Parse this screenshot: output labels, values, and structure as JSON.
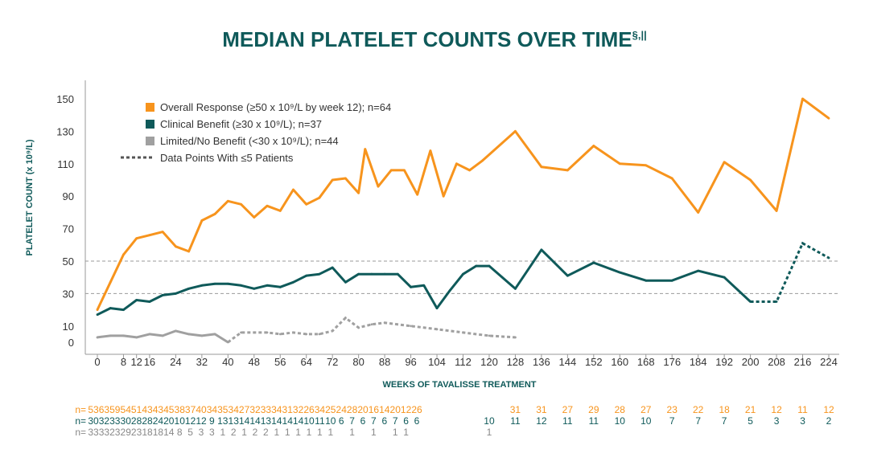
{
  "chart_data": {
    "type": "line",
    "title": "MEDIAN PLATELET COUNTS OVER TIME",
    "title_superscript": "§,||",
    "xlabel": "WEEKS OF TAVALISSE TREATMENT",
    "ylabel": "PLATELET COUNT (x 10⁹/L)",
    "ylim": [
      0,
      150
    ],
    "xlim": [
      0,
      224
    ],
    "x_ticks": [
      0,
      8,
      12,
      16,
      24,
      32,
      40,
      48,
      56,
      64,
      72,
      80,
      88,
      96,
      104,
      112,
      120,
      128,
      136,
      144,
      152,
      160,
      168,
      176,
      184,
      192,
      200,
      208,
      216,
      224
    ],
    "y_ticks": [
      0,
      10,
      30,
      50,
      70,
      90,
      110,
      130,
      150
    ],
    "reference_lines": [
      30,
      50
    ],
    "grid": false,
    "legend_placement": "top-left",
    "colors": {
      "overall": "#f7941d",
      "clinical": "#0f5a5a",
      "limited": "#a0a0a0",
      "dotted": "#555555"
    },
    "series": [
      {
        "name": "Overall Response (≥50 x 10⁹/L by week 12); n=64",
        "color": "#f7941d",
        "x": [
          0,
          4,
          8,
          12,
          16,
          20,
          24,
          28,
          32,
          36,
          40,
          44,
          48,
          52,
          56,
          60,
          64,
          68,
          72,
          76,
          80,
          82,
          86,
          90,
          94,
          98,
          102,
          106,
          110,
          114,
          118,
          128,
          136,
          144,
          152,
          160,
          168,
          176,
          184,
          192,
          200,
          208,
          216,
          224
        ],
        "y": [
          20,
          37,
          54,
          64,
          66,
          68,
          59,
          56,
          75,
          79,
          87,
          85,
          77,
          84,
          81,
          94,
          85,
          89,
          100,
          101,
          92,
          119,
          96,
          106,
          106,
          91,
          118,
          90,
          110,
          106,
          112,
          130,
          108,
          106,
          121,
          110,
          109,
          101,
          80,
          111,
          100,
          81,
          150,
          138
        ],
        "dotted_from_x": null
      },
      {
        "name": "Clinical Benefit (≥30 x 10⁹/L); n=37",
        "color": "#0f5a5a",
        "x": [
          0,
          4,
          8,
          12,
          16,
          20,
          24,
          28,
          32,
          36,
          40,
          44,
          48,
          52,
          56,
          60,
          64,
          68,
          72,
          76,
          80,
          84,
          88,
          92,
          96,
          100,
          104,
          108,
          112,
          116,
          120,
          128,
          136,
          144,
          152,
          160,
          168,
          176,
          184,
          192,
          200,
          208,
          216,
          224
        ],
        "y": [
          17,
          21,
          20,
          26,
          25,
          29,
          30,
          33,
          35,
          36,
          36,
          35,
          33,
          35,
          34,
          37,
          41,
          42,
          46,
          37,
          42,
          42,
          42,
          42,
          34,
          35,
          21,
          32,
          42,
          47,
          47,
          33,
          57,
          41,
          49,
          43,
          38,
          38,
          44,
          40,
          25,
          25,
          61,
          52
        ],
        "dotted_from_x": 200
      },
      {
        "name": "Limited/No Benefit (<30 x 10⁹/L); n=44",
        "color": "#a0a0a0",
        "x": [
          0,
          4,
          8,
          12,
          16,
          20,
          24,
          28,
          32,
          36,
          40,
          44,
          48,
          52,
          56,
          60,
          64,
          68,
          72,
          76,
          80,
          84,
          88,
          96,
          104,
          112,
          120,
          128
        ],
        "y": [
          3,
          4,
          4,
          3,
          5,
          4,
          7,
          5,
          4,
          5,
          0,
          6,
          6,
          6,
          5,
          6,
          5,
          5,
          7,
          15,
          9,
          11,
          12,
          10,
          8,
          6,
          4,
          3
        ],
        "dotted_from_x": 40
      }
    ],
    "legend": [
      {
        "label": "Overall Response (≥50 x 10⁹/L by week 12); n=64",
        "marker": "square",
        "color": "#f7941d"
      },
      {
        "label": "Clinical Benefit (≥30 x 10⁹/L); n=37",
        "marker": "square",
        "color": "#0f5a5a"
      },
      {
        "label": "Limited/No Benefit (<30 x 10⁹/L); n=44",
        "marker": "square",
        "color": "#a0a0a0"
      },
      {
        "label": "Data Points With ≤5 Patients",
        "marker": "dashed-line",
        "color": "#555555"
      }
    ],
    "n_table": {
      "row_label": "n=",
      "rows": [
        {
          "color": "#f7941d",
          "cells": [
            {
              "x": 4,
              "v": "53"
            },
            {
              "x": 8,
              "v": "63"
            },
            {
              "x": 12,
              "v": "59"
            },
            {
              "x": 16,
              "v": "54"
            },
            {
              "x": 20,
              "v": "51"
            },
            {
              "x": 24,
              "v": "43"
            },
            {
              "x": 28,
              "v": "43"
            },
            {
              "x": 32,
              "v": "45"
            },
            {
              "x": 36,
              "v": "38"
            },
            {
              "x": 40,
              "v": "37"
            },
            {
              "x": 44,
              "v": "40"
            },
            {
              "x": 48,
              "v": "34"
            },
            {
              "x": 52,
              "v": "35"
            },
            {
              "x": 56,
              "v": "34"
            },
            {
              "x": 60,
              "v": "27"
            },
            {
              "x": 64,
              "v": "32"
            },
            {
              "x": 68,
              "v": "33"
            },
            {
              "x": 72,
              "v": "34"
            },
            {
              "x": 76,
              "v": "31"
            },
            {
              "x": 80,
              "v": "32"
            },
            {
              "x": 84,
              "v": "26"
            },
            {
              "x": 88,
              "v": "34"
            },
            {
              "x": 92,
              "v": "25"
            },
            {
              "x": 96,
              "v": "24"
            },
            {
              "x": 100,
              "v": "28"
            },
            {
              "x": 104,
              "v": "20"
            },
            {
              "x": 108,
              "v": "16"
            },
            {
              "x": 112,
              "v": "14"
            },
            {
              "x": 116,
              "v": "20"
            },
            {
              "x": 120,
              "v": "12"
            },
            {
              "x": 124,
              "v": "26"
            },
            {
              "x": 136,
              "v": "31"
            },
            {
              "x": 144,
              "v": "31"
            },
            {
              "x": 152,
              "v": "27"
            },
            {
              "x": 160,
              "v": "29"
            },
            {
              "x": 168,
              "v": "28"
            },
            {
              "x": 176,
              "v": "27"
            },
            {
              "x": 184,
              "v": "23"
            },
            {
              "x": 192,
              "v": "22"
            },
            {
              "x": 200,
              "v": "18"
            },
            {
              "x": 208,
              "v": "21"
            },
            {
              "x": 216,
              "v": "12"
            },
            {
              "x": 224,
              "v": "11"
            },
            {
              "x": 232,
              "v": "12"
            }
          ]
        },
        {
          "color": "#0f5a5a",
          "cells": [
            {
              "x": 4,
              "v": "30"
            },
            {
              "x": 8,
              "v": "32"
            },
            {
              "x": 12,
              "v": "33"
            },
            {
              "x": 16,
              "v": "30"
            },
            {
              "x": 20,
              "v": "28"
            },
            {
              "x": 24,
              "v": "28"
            },
            {
              "x": 28,
              "v": "24"
            },
            {
              "x": 32,
              "v": "20"
            },
            {
              "x": 36,
              "v": "10"
            },
            {
              "x": 40,
              "v": "12"
            },
            {
              "x": 44,
              "v": "12"
            },
            {
              "x": 48,
              "v": "9"
            },
            {
              "x": 52,
              "v": "13"
            },
            {
              "x": 56,
              "v": "13"
            },
            {
              "x": 60,
              "v": "14"
            },
            {
              "x": 64,
              "v": "14"
            },
            {
              "x": 68,
              "v": "13"
            },
            {
              "x": 72,
              "v": "14"
            },
            {
              "x": 76,
              "v": "14"
            },
            {
              "x": 80,
              "v": "14"
            },
            {
              "x": 84,
              "v": "10"
            },
            {
              "x": 88,
              "v": "11"
            },
            {
              "x": 92,
              "v": "10"
            },
            {
              "x": 96,
              "v": "6"
            },
            {
              "x": 100,
              "v": "7"
            },
            {
              "x": 104,
              "v": "6"
            },
            {
              "x": 108,
              "v": "7"
            },
            {
              "x": 112,
              "v": "6"
            },
            {
              "x": 116,
              "v": "7"
            },
            {
              "x": 120,
              "v": "6"
            },
            {
              "x": 124,
              "v": "6"
            },
            {
              "x": 128,
              "v": "10"
            },
            {
              "x": 136,
              "v": "11"
            },
            {
              "x": 144,
              "v": "12"
            },
            {
              "x": 152,
              "v": "11"
            },
            {
              "x": 160,
              "v": "11"
            },
            {
              "x": 168,
              "v": "10"
            },
            {
              "x": 176,
              "v": "10"
            },
            {
              "x": 184,
              "v": "7"
            },
            {
              "x": 192,
              "v": "7"
            },
            {
              "x": 200,
              "v": "7"
            },
            {
              "x": 208,
              "v": "5"
            },
            {
              "x": 216,
              "v": "3"
            },
            {
              "x": 224,
              "v": "3"
            },
            {
              "x": 232,
              "v": "2"
            }
          ]
        },
        {
          "color": "#888888",
          "cells": [
            {
              "x": 4,
              "v": "33"
            },
            {
              "x": 8,
              "v": "33"
            },
            {
              "x": 12,
              "v": "23"
            },
            {
              "x": 16,
              "v": "29"
            },
            {
              "x": 20,
              "v": "23"
            },
            {
              "x": 24,
              "v": "18"
            },
            {
              "x": 28,
              "v": "18"
            },
            {
              "x": 32,
              "v": "14"
            },
            {
              "x": 36,
              "v": "8"
            },
            {
              "x": 40,
              "v": "5"
            },
            {
              "x": 44,
              "v": "3"
            },
            {
              "x": 48,
              "v": "3"
            },
            {
              "x": 52,
              "v": "1"
            },
            {
              "x": 56,
              "v": "2"
            },
            {
              "x": 60,
              "v": "1"
            },
            {
              "x": 64,
              "v": "2"
            },
            {
              "x": 68,
              "v": "2"
            },
            {
              "x": 72,
              "v": "1"
            },
            {
              "x": 76,
              "v": "1"
            },
            {
              "x": 80,
              "v": "1"
            },
            {
              "x": 84,
              "v": "1"
            },
            {
              "x": 88,
              "v": "1"
            },
            {
              "x": 92,
              "v": "1"
            },
            {
              "x": 100,
              "v": "1"
            },
            {
              "x": 108,
              "v": "1"
            },
            {
              "x": 116,
              "v": "1"
            },
            {
              "x": 120,
              "v": "1"
            },
            {
              "x": 128,
              "v": "1"
            }
          ]
        }
      ]
    }
  }
}
